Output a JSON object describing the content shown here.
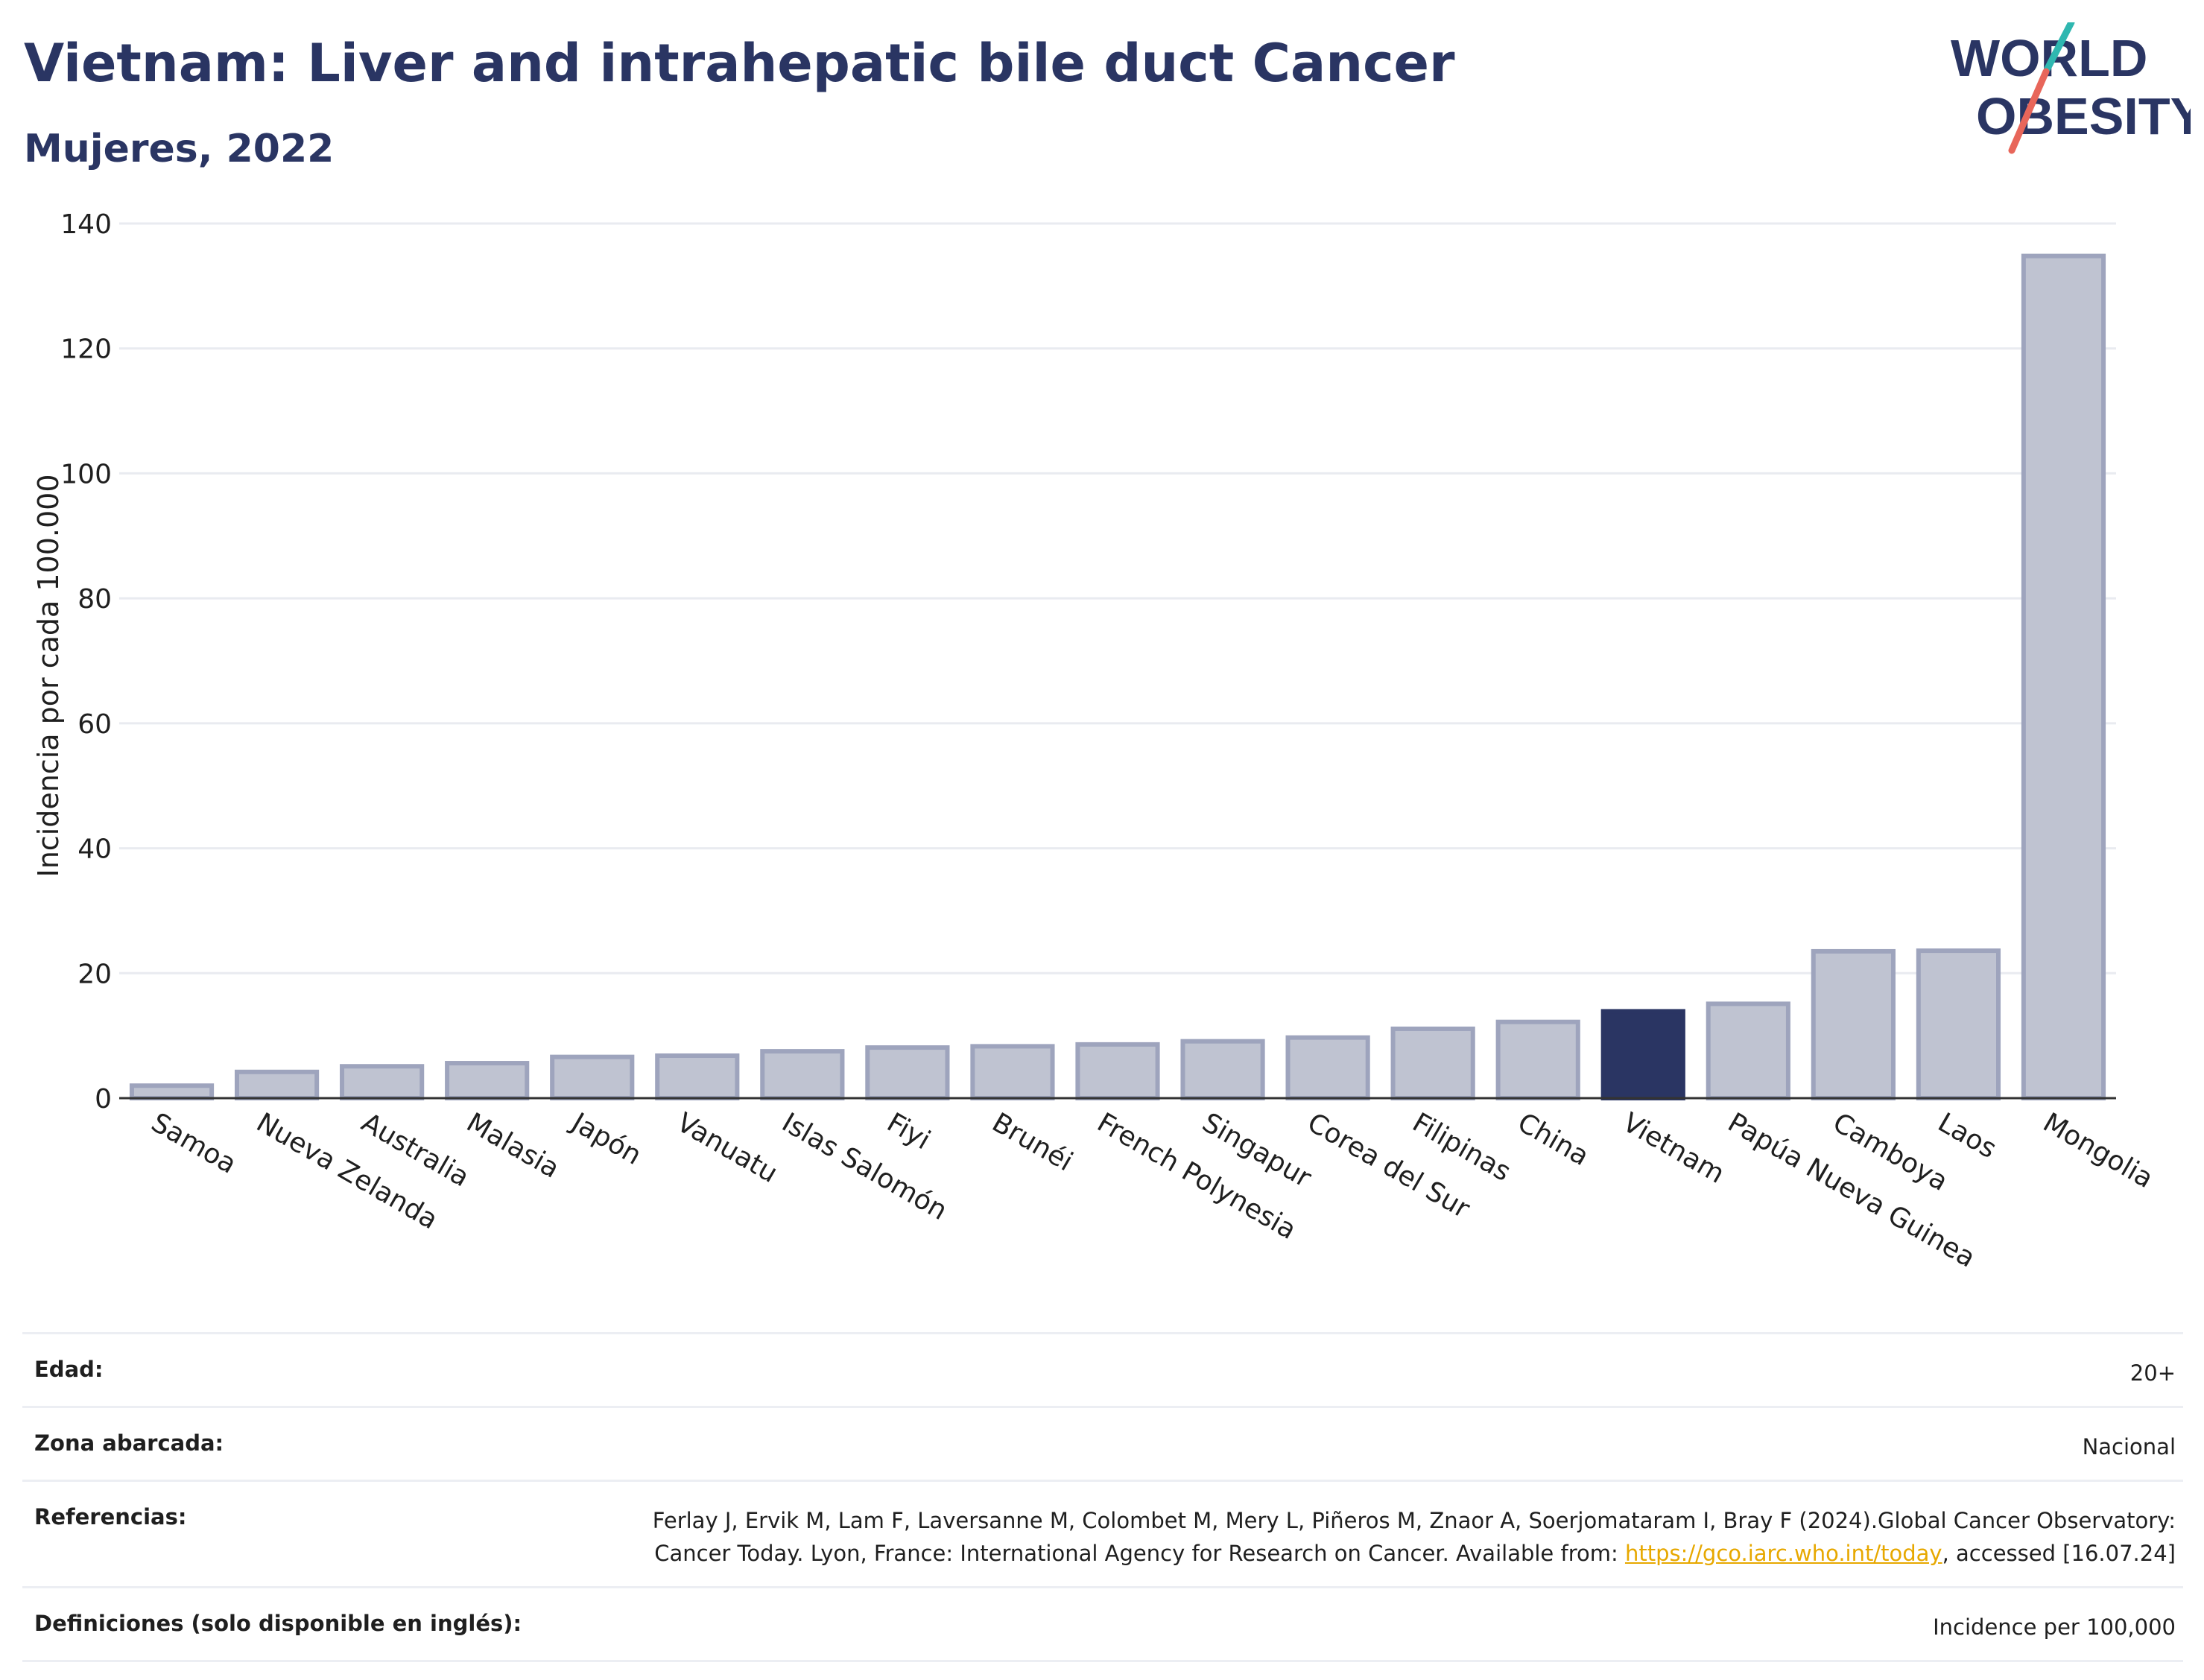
{
  "header": {
    "title": "Vietnam: Liver and intrahepatic bile duct Cancer",
    "subtitle": "Mujeres, 2022"
  },
  "logo": {
    "line1": "WORLD",
    "line2": "OBESITY",
    "slash_colors": [
      "#2fb7b0",
      "#e8665a"
    ]
  },
  "chart_data": {
    "type": "bar",
    "ylabel": "Incidencia por cada 100.000",
    "xlabel": "",
    "ylim": [
      0,
      140
    ],
    "yticks": [
      0,
      20,
      40,
      60,
      80,
      100,
      120,
      140
    ],
    "grid": true,
    "highlight": "Vietnam",
    "colors": {
      "bar": "#bfc3d1",
      "bar_edge": "#9ea4bd",
      "highlight": "#2a3563"
    },
    "categories": [
      "Samoa",
      "Nueva Zelanda",
      "Australia",
      "Malasia",
      "Japón",
      "Vanuatu",
      "Islas Salomón",
      "Fiyi",
      "Brunéi",
      "French Polynesia",
      "Singapur",
      "Corea del Sur",
      "Filipinas",
      "China",
      "Vietnam",
      "Papúa Nueva Guinea",
      "Camboya",
      "Laos",
      "Mongolia"
    ],
    "values": [
      2.0,
      4.2,
      5.1,
      5.6,
      6.6,
      6.8,
      7.5,
      8.1,
      8.3,
      8.6,
      9.1,
      9.7,
      11.1,
      12.2,
      13.9,
      15.1,
      23.5,
      23.6,
      134.8
    ]
  },
  "meta": [
    {
      "key": "Edad:",
      "value": "20+"
    },
    {
      "key": "Zona abarcada:",
      "value": "Nacional"
    },
    {
      "key": "Referencias:",
      "value_pre": "Ferlay J, Ervik M, Lam F, Laversanne M, Colombet M, Mery L, Piñeros M, Znaor A, Soerjomataram I, Bray F (2024).Global Cancer Observatory: Cancer Today. Lyon, France: International Agency for Research on Cancer. Available from: ",
      "link": "https://gco.iarc.who.int/today",
      "value_post": ", accessed [16.07.24]"
    },
    {
      "key": "Definiciones (solo disponible en inglés):",
      "value": "Incidence per 100,000"
    }
  ]
}
